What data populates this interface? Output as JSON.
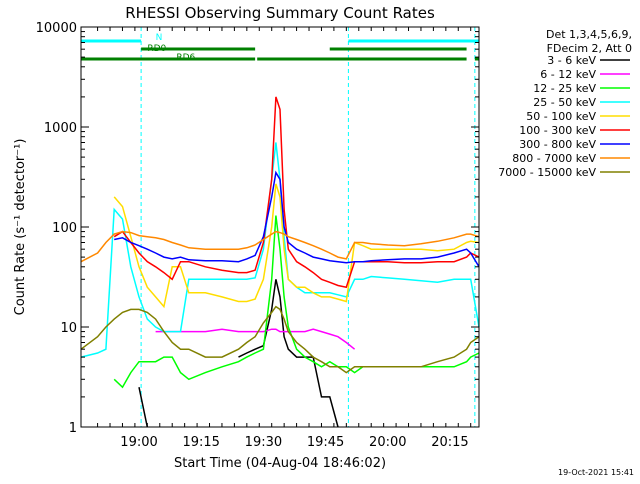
{
  "chart_data": {
    "type": "line",
    "title": "RHESSI Observing Summary Count Rates",
    "xlabel": "Start Time (04-Aug-04 18:46:02)",
    "ylabel": "Count Rate (s⁻¹ detector⁻¹)",
    "y_scale": "log",
    "ylim": [
      1,
      10000
    ],
    "xlim_minutes_after_start": [
      0,
      96
    ],
    "x_tick_labels": [
      "19:00",
      "19:15",
      "19:30",
      "19:45",
      "20:00",
      "20:15"
    ],
    "y_tick_labels": [
      "1",
      "10",
      "100",
      "1000",
      "10000"
    ],
    "grid": false,
    "legend_position": "right",
    "legend_header": [
      "Det 1,3,4,5,6,9,",
      "FDecim 2, Att 0"
    ],
    "timestamp": "19-Oct-2021 15:41",
    "x_values": [
      0,
      4,
      6,
      8,
      10,
      12,
      14,
      16,
      18,
      20,
      22,
      24,
      26,
      30,
      34,
      38,
      40,
      42,
      44,
      46,
      47,
      48,
      49,
      50,
      52,
      54,
      56,
      58,
      60,
      62,
      64,
      66,
      68,
      70,
      74,
      78,
      82,
      86,
      90,
      93,
      94,
      96
    ],
    "series": [
      {
        "name": "3 - 6 keV",
        "color": "#000000",
        "values": [
          null,
          null,
          null,
          null,
          null,
          null,
          2.5,
          1,
          null,
          null,
          null,
          null,
          null,
          null,
          null,
          5,
          5.5,
          6,
          6.5,
          15,
          30,
          20,
          8,
          6,
          5,
          5,
          5,
          2,
          2,
          1,
          null,
          null,
          null,
          null,
          null,
          null,
          null,
          null,
          null,
          null,
          null,
          null
        ]
      },
      {
        "name": "6 - 12 keV",
        "color": "#ff00ff",
        "values": [
          null,
          null,
          null,
          null,
          null,
          null,
          null,
          null,
          9,
          9,
          9,
          9,
          9,
          9,
          9.5,
          9,
          9,
          9,
          9,
          9.5,
          9.5,
          9,
          9,
          9,
          9,
          9,
          9.5,
          9,
          8.5,
          8,
          7,
          6,
          null,
          null,
          null,
          null,
          null,
          null,
          null,
          null,
          null,
          null
        ]
      },
      {
        "name": "12 - 25 keV",
        "color": "#00ff00",
        "values": [
          null,
          null,
          null,
          3,
          2.5,
          3.5,
          4.5,
          4.5,
          4.5,
          5,
          5,
          3.5,
          3,
          3.5,
          4,
          4.5,
          5,
          5.5,
          6,
          30,
          130,
          60,
          20,
          10,
          6,
          5,
          4.5,
          4,
          4.5,
          4,
          4,
          3.5,
          4,
          4,
          4,
          4,
          4,
          4,
          4,
          4.5,
          5,
          5.5
        ]
      },
      {
        "name": "25 - 50 keV",
        "color": "#00ffff",
        "values": [
          5,
          5.5,
          6,
          150,
          120,
          40,
          20,
          12,
          10,
          9,
          9,
          9,
          30,
          30,
          30,
          30,
          30,
          31,
          60,
          300,
          700,
          300,
          80,
          30,
          25,
          22,
          22,
          22,
          22,
          21,
          20,
          30,
          30,
          32,
          31,
          30,
          29,
          28,
          30,
          30,
          30,
          10
        ]
      },
      {
        "name": "50 - 100 keV",
        "color": "#ffdd00",
        "values": [
          null,
          null,
          null,
          200,
          160,
          80,
          40,
          25,
          20,
          16,
          40,
          40,
          22,
          22,
          20,
          18,
          18,
          19,
          30,
          100,
          270,
          200,
          60,
          30,
          25,
          25,
          22,
          20,
          20,
          19,
          18,
          70,
          65,
          60,
          60,
          60,
          60,
          58,
          60,
          70,
          72,
          70
        ]
      },
      {
        "name": "100 - 300 keV",
        "color": "#ff0000",
        "values": [
          null,
          null,
          null,
          80,
          90,
          70,
          55,
          45,
          40,
          35,
          30,
          45,
          45,
          40,
          37,
          35,
          35,
          37,
          70,
          300,
          2000,
          1500,
          150,
          60,
          45,
          40,
          35,
          30,
          28,
          26,
          25,
          45,
          45,
          45,
          45,
          44,
          44,
          45,
          45,
          50,
          55,
          50
        ]
      },
      {
        "name": "300 - 800 keV",
        "color": "#0000ff",
        "values": [
          null,
          null,
          null,
          75,
          78,
          70,
          65,
          60,
          55,
          50,
          48,
          50,
          47,
          46,
          46,
          45,
          48,
          52,
          80,
          200,
          350,
          300,
          100,
          70,
          60,
          55,
          50,
          48,
          46,
          45,
          44,
          45,
          45,
          46,
          47,
          48,
          48,
          50,
          55,
          60,
          55,
          40
        ]
      },
      {
        "name": "800 - 7000 keV",
        "color": "#ff8800",
        "values": [
          45,
          55,
          70,
          85,
          90,
          88,
          82,
          80,
          78,
          75,
          70,
          66,
          62,
          60,
          60,
          60,
          62,
          66,
          75,
          85,
          90,
          88,
          85,
          80,
          75,
          70,
          65,
          60,
          55,
          50,
          48,
          70,
          70,
          68,
          66,
          65,
          68,
          72,
          78,
          85,
          85,
          80
        ]
      },
      {
        "name": "7000 - 15000 keV",
        "color": "#808000",
        "values": [
          6,
          8,
          10,
          12,
          14,
          15,
          15,
          14,
          12,
          9,
          7,
          6,
          6,
          5,
          5,
          6,
          7,
          8,
          11,
          14,
          16,
          15,
          12,
          9,
          7,
          6,
          5,
          4.5,
          4,
          4,
          3.5,
          4,
          4,
          4,
          4,
          4,
          4,
          4.5,
          5,
          6,
          7,
          8
        ]
      }
    ],
    "bars": [
      {
        "label": "N",
        "color": "#00ffff",
        "segments": [
          [
            0,
            14.5
          ],
          [
            64.5,
            96
          ]
        ]
      },
      {
        "label": "RD0",
        "color": "#008000",
        "segments": [
          [
            14.5,
            42
          ],
          [
            60,
            93
          ]
        ]
      },
      {
        "label": "RD6",
        "color": "#008000",
        "segments": [
          [
            0,
            42
          ],
          [
            42.5,
            93
          ],
          [
            95,
            96
          ]
        ]
      }
    ],
    "vertical_markers_minutes": [
      14.5,
      64.5,
      95
    ]
  }
}
